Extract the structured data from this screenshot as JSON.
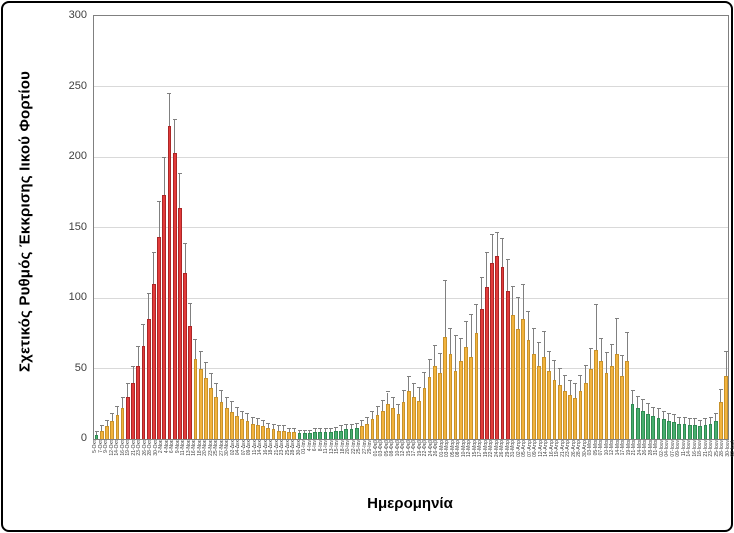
{
  "chart_data": {
    "type": "bar",
    "title": "",
    "ylabel": "Σχετικός Ρυθμός Έκκρισης Ιικού Φορτίου",
    "xlabel": "Ημερομηνία",
    "ylim": [
      0,
      300
    ],
    "yticks": [
      0,
      50,
      100,
      150,
      200,
      250,
      300
    ],
    "grid": true,
    "error_bars": true,
    "legend_position": "none",
    "colors": {
      "o": "#F2B33D",
      "r": "#E23B3B",
      "g": "#47AE6E"
    },
    "color_meaning": {
      "o": "orange-medium-level",
      "r": "red-high-level",
      "g": "green-low-level"
    },
    "gridline_color": "#D9D9D9",
    "error_bar_color": "#808080",
    "points": [
      {
        "d": "5-Οκτ",
        "v": 3,
        "e": 2,
        "c": "g"
      },
      {
        "d": "7-Οκτ",
        "v": 6,
        "e": 3,
        "c": "o"
      },
      {
        "d": "9-Οκτ",
        "v": 9,
        "e": 4,
        "c": "o"
      },
      {
        "d": "12-Οκτ",
        "v": 13,
        "e": 5,
        "c": "o"
      },
      {
        "d": "14-Οκτ",
        "v": 17,
        "e": 6,
        "c": "o"
      },
      {
        "d": "16-Οκτ",
        "v": 22,
        "e": 7,
        "c": "o"
      },
      {
        "d": "19-Οκτ",
        "v": 30,
        "e": 9,
        "c": "r"
      },
      {
        "d": "21-Οκτ",
        "v": 40,
        "e": 11,
        "c": "r"
      },
      {
        "d": "23-Οκτ",
        "v": 52,
        "e": 13,
        "c": "r"
      },
      {
        "d": "26-Οκτ",
        "v": 66,
        "e": 15,
        "c": "r"
      },
      {
        "d": "28-Οκτ",
        "v": 85,
        "e": 18,
        "c": "r"
      },
      {
        "d": "30-Οκτ",
        "v": 110,
        "e": 22,
        "c": "r"
      },
      {
        "d": "2-Νοε",
        "v": 143,
        "e": 25,
        "c": "r"
      },
      {
        "d": "4-Νοε",
        "v": 173,
        "e": 26,
        "c": "r"
      },
      {
        "d": "6-Νοε",
        "v": 222,
        "e": 23,
        "c": "r"
      },
      {
        "d": "9-Νοε",
        "v": 203,
        "e": 23,
        "c": "r"
      },
      {
        "d": "11-Νοε",
        "v": 164,
        "e": 24,
        "c": "r"
      },
      {
        "d": "13-Νοε",
        "v": 118,
        "e": 20,
        "c": "r"
      },
      {
        "d": "16-Νοε",
        "v": 80,
        "e": 16,
        "c": "r"
      },
      {
        "d": "18-Νοε",
        "v": 57,
        "e": 13,
        "c": "o"
      },
      {
        "d": "20-Νοε",
        "v": 50,
        "e": 12,
        "c": "o"
      },
      {
        "d": "23-Νοε",
        "v": 43,
        "e": 11,
        "c": "o"
      },
      {
        "d": "25-Νοε",
        "v": 36,
        "e": 10,
        "c": "o"
      },
      {
        "d": "27-Νοε",
        "v": 30,
        "e": 9,
        "c": "o"
      },
      {
        "d": "30-Νοε",
        "v": 26,
        "e": 8,
        "c": "o"
      },
      {
        "d": "02-Δεκ",
        "v": 22,
        "e": 7,
        "c": "o"
      },
      {
        "d": "04-Δεκ",
        "v": 19,
        "e": 7,
        "c": "o"
      },
      {
        "d": "07-Δεκ",
        "v": 16,
        "e": 6,
        "c": "o"
      },
      {
        "d": "09-Δεκ",
        "v": 14,
        "e": 5,
        "c": "o"
      },
      {
        "d": "11-Δεκ",
        "v": 13,
        "e": 5,
        "c": "o"
      },
      {
        "d": "14-Δεκ",
        "v": 11,
        "e": 4,
        "c": "o"
      },
      {
        "d": "16-Δεκ",
        "v": 10,
        "e": 4,
        "c": "o"
      },
      {
        "d": "18-Δεκ",
        "v": 9,
        "e": 4,
        "c": "o"
      },
      {
        "d": "21-Δεκ",
        "v": 8,
        "e": 3,
        "c": "o"
      },
      {
        "d": "23-Δεκ",
        "v": 7,
        "e": 3,
        "c": "o"
      },
      {
        "d": "25-Δεκ",
        "v": 6,
        "e": 3,
        "c": "o"
      },
      {
        "d": "28-Δεκ",
        "v": 6,
        "e": 3,
        "c": "o"
      },
      {
        "d": "30-Δεκ",
        "v": 5,
        "e": 2,
        "c": "o"
      },
      {
        "d": "01-Ιαν",
        "v": 5,
        "e": 2,
        "c": "o"
      },
      {
        "d": "4-Ιαν",
        "v": 4,
        "e": 2,
        "c": "g"
      },
      {
        "d": "6-Ιαν",
        "v": 4,
        "e": 2,
        "c": "g"
      },
      {
        "d": "8-Ιαν",
        "v": 4,
        "e": 2,
        "c": "g"
      },
      {
        "d": "11-Ιαν",
        "v": 5,
        "e": 2,
        "c": "g"
      },
      {
        "d": "13-Ιαν",
        "v": 5,
        "e": 2,
        "c": "g"
      },
      {
        "d": "15-Ιαν",
        "v": 5,
        "e": 2,
        "c": "g"
      },
      {
        "d": "18-Ιαν",
        "v": 5,
        "e": 2,
        "c": "g"
      },
      {
        "d": "20-Ιαν",
        "v": 6,
        "e": 2,
        "c": "g"
      },
      {
        "d": "22-Ιαν",
        "v": 6,
        "e": 3,
        "c": "g"
      },
      {
        "d": "25-Ιαν",
        "v": 7,
        "e": 3,
        "c": "g"
      },
      {
        "d": "27-Ιαν",
        "v": 7,
        "e": 3,
        "c": "g"
      },
      {
        "d": "29-Ιαν",
        "v": 8,
        "e": 3,
        "c": "g"
      },
      {
        "d": "01-Φεβ",
        "v": 9,
        "e": 4,
        "c": "o"
      },
      {
        "d": "03-Φεβ",
        "v": 11,
        "e": 4,
        "c": "o"
      },
      {
        "d": "05-Φεβ",
        "v": 14,
        "e": 5,
        "c": "o"
      },
      {
        "d": "08-Φεβ",
        "v": 17,
        "e": 6,
        "c": "o"
      },
      {
        "d": "10-Φεβ",
        "v": 20,
        "e": 7,
        "c": "o"
      },
      {
        "d": "12-Φεβ",
        "v": 25,
        "e": 8,
        "c": "o"
      },
      {
        "d": "15-Φεβ",
        "v": 22,
        "e": 7,
        "c": "o"
      },
      {
        "d": "17-Φεβ",
        "v": 18,
        "e": 6,
        "c": "o"
      },
      {
        "d": "19-Φεβ",
        "v": 26,
        "e": 8,
        "c": "o"
      },
      {
        "d": "22-Φεβ",
        "v": 34,
        "e": 10,
        "c": "o"
      },
      {
        "d": "24-Φεβ",
        "v": 30,
        "e": 9,
        "c": "o"
      },
      {
        "d": "26-Φεβ",
        "v": 27,
        "e": 9,
        "c": "o"
      },
      {
        "d": "01-Μαρ",
        "v": 36,
        "e": 11,
        "c": "o"
      },
      {
        "d": "03-Μαρ",
        "v": 44,
        "e": 12,
        "c": "o"
      },
      {
        "d": "05-Μαρ",
        "v": 52,
        "e": 14,
        "c": "o"
      },
      {
        "d": "08-Μαρ",
        "v": 47,
        "e": 13,
        "c": "o"
      },
      {
        "d": "10-Μαρ",
        "v": 72,
        "e": 40,
        "c": "o"
      },
      {
        "d": "12-Μαρ",
        "v": 60,
        "e": 18,
        "c": "o"
      },
      {
        "d": "15-Μαρ",
        "v": 48,
        "e": 25,
        "c": "o"
      },
      {
        "d": "17-Μαρ",
        "v": 55,
        "e": 16,
        "c": "o"
      },
      {
        "d": "19-Μαρ",
        "v": 65,
        "e": 18,
        "c": "o"
      },
      {
        "d": "22-Μαρ",
        "v": 58,
        "e": 30,
        "c": "o"
      },
      {
        "d": "24-Μαρ",
        "v": 75,
        "e": 20,
        "c": "o"
      },
      {
        "d": "26-Μαρ",
        "v": 92,
        "e": 22,
        "c": "r"
      },
      {
        "d": "29-Μαρ",
        "v": 108,
        "e": 24,
        "c": "r"
      },
      {
        "d": "31-Μαρ",
        "v": 125,
        "e": 20,
        "c": "r"
      },
      {
        "d": "02-Απρ",
        "v": 130,
        "e": 16,
        "c": "r"
      },
      {
        "d": "05-Απρ",
        "v": 122,
        "e": 20,
        "c": "r"
      },
      {
        "d": "07-Απρ",
        "v": 105,
        "e": 22,
        "c": "r"
      },
      {
        "d": "09-Απρ",
        "v": 88,
        "e": 20,
        "c": "o"
      },
      {
        "d": "12-Απρ",
        "v": 78,
        "e": 22,
        "c": "o"
      },
      {
        "d": "14-Απρ",
        "v": 85,
        "e": 24,
        "c": "o"
      },
      {
        "d": "16-Απρ",
        "v": 70,
        "e": 20,
        "c": "o"
      },
      {
        "d": "19-Απρ",
        "v": 60,
        "e": 18,
        "c": "o"
      },
      {
        "d": "21-Απρ",
        "v": 52,
        "e": 16,
        "c": "o"
      },
      {
        "d": "23-Απρ",
        "v": 58,
        "e": 18,
        "c": "o"
      },
      {
        "d": "26-Απρ",
        "v": 48,
        "e": 14,
        "c": "o"
      },
      {
        "d": "28-Απρ",
        "v": 42,
        "e": 13,
        "c": "o"
      },
      {
        "d": "30-Απρ",
        "v": 38,
        "e": 12,
        "c": "o"
      },
      {
        "d": "03-Μαι",
        "v": 34,
        "e": 11,
        "c": "o"
      },
      {
        "d": "05-Μαι",
        "v": 31,
        "e": 10,
        "c": "o"
      },
      {
        "d": "07-Μαι",
        "v": 29,
        "e": 10,
        "c": "o"
      },
      {
        "d": "10-Μαι",
        "v": 34,
        "e": 11,
        "c": "o"
      },
      {
        "d": "12-Μαι",
        "v": 40,
        "e": 12,
        "c": "o"
      },
      {
        "d": "14-Μαι",
        "v": 50,
        "e": 14,
        "c": "o"
      },
      {
        "d": "17-Μαι",
        "v": 63,
        "e": 32,
        "c": "o"
      },
      {
        "d": "19-Μαι",
        "v": 55,
        "e": 16,
        "c": "o"
      },
      {
        "d": "21-Μαι",
        "v": 47,
        "e": 14,
        "c": "o"
      },
      {
        "d": "24-Μαι",
        "v": 52,
        "e": 15,
        "c": "o"
      },
      {
        "d": "26-Μαι",
        "v": 60,
        "e": 25,
        "c": "o"
      },
      {
        "d": "28-Μαι",
        "v": 45,
        "e": 14,
        "c": "o"
      },
      {
        "d": "31-Μαι",
        "v": 55,
        "e": 20,
        "c": "o"
      },
      {
        "d": "02-Ιουν",
        "v": 25,
        "e": 9,
        "c": "g"
      },
      {
        "d": "04-Ιουν",
        "v": 22,
        "e": 8,
        "c": "g"
      },
      {
        "d": "07-Ιουν",
        "v": 20,
        "e": 8,
        "c": "g"
      },
      {
        "d": "09-Ιουν",
        "v": 18,
        "e": 7,
        "c": "g"
      },
      {
        "d": "11-Ιουν",
        "v": 16,
        "e": 6,
        "c": "g"
      },
      {
        "d": "14-Ιουν",
        "v": 15,
        "e": 6,
        "c": "g"
      },
      {
        "d": "16-Ιουν",
        "v": 14,
        "e": 5,
        "c": "g"
      },
      {
        "d": "18-Ιουν",
        "v": 13,
        "e": 5,
        "c": "g"
      },
      {
        "d": "21-Ιουν",
        "v": 12,
        "e": 5,
        "c": "g"
      },
      {
        "d": "23-Ιουν",
        "v": 11,
        "e": 4,
        "c": "g"
      },
      {
        "d": "25-Ιουν",
        "v": 11,
        "e": 4,
        "c": "g"
      },
      {
        "d": "28-Ιουν",
        "v": 10,
        "e": 4,
        "c": "g"
      },
      {
        "d": "30-Ιουν",
        "v": 10,
        "e": 4,
        "c": "g"
      },
      {
        "d": "02-Ιουλ",
        "v": 9,
        "e": 4,
        "c": "g"
      },
      {
        "d": "05-Ιουλ",
        "v": 10,
        "e": 4,
        "c": "g"
      },
      {
        "d": "07-Ιουλ",
        "v": 11,
        "e": 4,
        "c": "g"
      },
      {
        "d": "09-Ιουλ",
        "v": 13,
        "e": 5,
        "c": "g"
      },
      {
        "d": "12-Ιουλ",
        "v": 26,
        "e": 9,
        "c": "o"
      },
      {
        "d": "14-Ιουλ",
        "v": 45,
        "e": 17,
        "c": "o"
      }
    ]
  }
}
